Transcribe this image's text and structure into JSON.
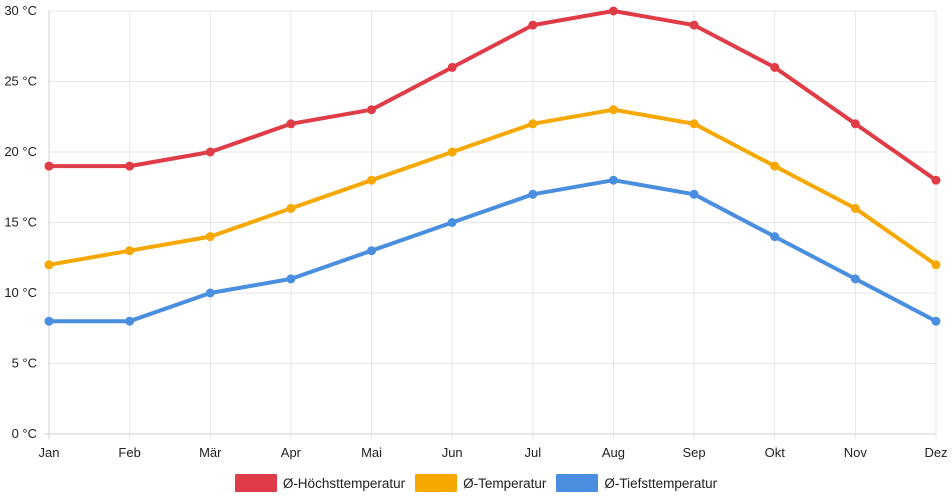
{
  "chart_data": {
    "type": "line",
    "title": "",
    "xlabel": "",
    "ylabel": "",
    "categories": [
      "Jan",
      "Feb",
      "Mär",
      "Apr",
      "Mai",
      "Jun",
      "Jul",
      "Aug",
      "Sep",
      "Okt",
      "Nov",
      "Dez"
    ],
    "ylim": [
      0,
      30
    ],
    "yticks": [
      0,
      5,
      10,
      15,
      20,
      25,
      30
    ],
    "ytick_labels": [
      "0 °C",
      "5 °C",
      "10 °C",
      "15 °C",
      "20 °C",
      "25 °C",
      "30 °C"
    ],
    "grid": true,
    "legend_position": "bottom-center",
    "series": [
      {
        "name": "Ø-Höchsttemperatur",
        "color": "#e03c48",
        "values": [
          19,
          19,
          20,
          22,
          23,
          26,
          29,
          30,
          29,
          26,
          22,
          18
        ]
      },
      {
        "name": "Ø-Temperatur",
        "color": "#f7a800",
        "values": [
          12,
          13,
          14,
          16,
          18,
          20,
          22,
          23,
          22,
          19,
          16,
          12
        ]
      },
      {
        "name": "Ø-Tiefsttemperatur",
        "color": "#4a8fdf",
        "values": [
          8,
          8,
          10,
          11,
          13,
          15,
          17,
          18,
          17,
          14,
          11,
          8
        ]
      }
    ]
  }
}
